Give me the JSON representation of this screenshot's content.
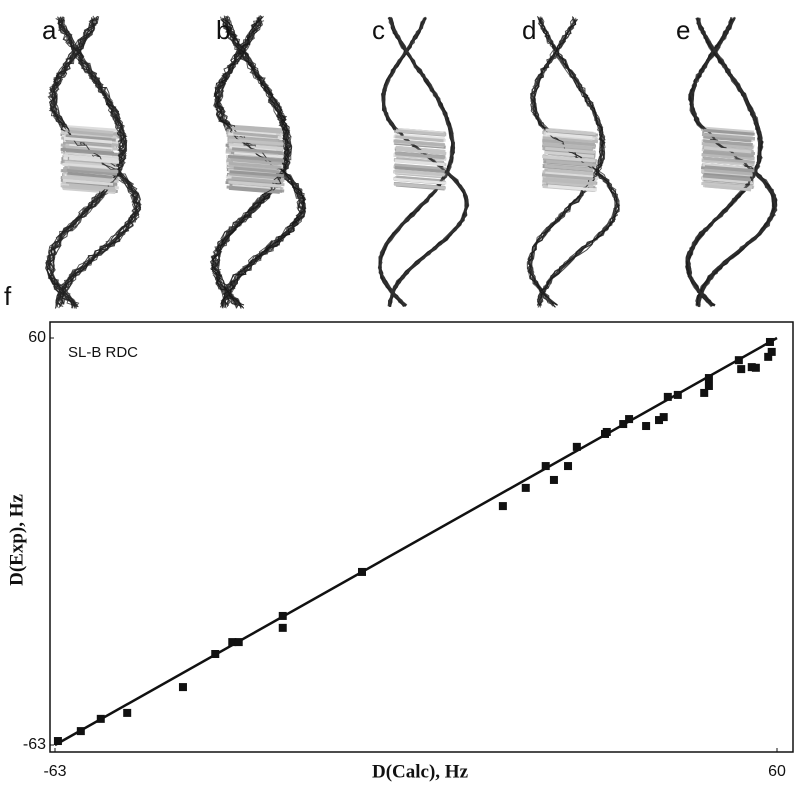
{
  "panels": {
    "labels": [
      "a",
      "b",
      "c",
      "d",
      "e"
    ],
    "plot_label": "f"
  },
  "chart_data": {
    "type": "scatter",
    "title": "SL-B RDC",
    "xlabel": "D(Calc), Hz",
    "ylabel": "D(Exp), Hz",
    "xlim": [
      -63,
      60
    ],
    "ylim": [
      -63,
      60
    ],
    "xticks": [
      -63,
      60
    ],
    "yticks": [
      -63,
      60
    ],
    "color": "#111111",
    "x": [
      -62.5,
      -58.6,
      -55.2,
      -50.7,
      -41.2,
      -35.7,
      -32.8,
      -31.7,
      -24.2,
      -24.2,
      -10.7,
      13.3,
      17.2,
      20.6,
      22.0,
      24.4,
      25.9,
      30.7,
      31.0,
      33.8,
      34.8,
      37.7,
      39.9,
      40.7,
      41.4,
      43.1,
      47.6,
      48.4,
      48.4,
      53.5,
      53.9,
      55.7,
      56.4,
      58.5,
      58.8,
      59.1
    ],
    "y": [
      -61.8,
      -58.8,
      -55.1,
      -53.3,
      -45.5,
      -35.5,
      -31.9,
      -31.9,
      -24.0,
      -27.6,
      -10.7,
      9.2,
      14.7,
      21.3,
      17.1,
      21.3,
      27.1,
      31.0,
      31.6,
      34.0,
      35.5,
      33.4,
      35.2,
      36.1,
      42.2,
      42.8,
      43.4,
      45.5,
      47.9,
      53.3,
      50.6,
      51.2,
      51.0,
      54.3,
      58.8,
      55.8
    ],
    "fit_line": {
      "x": [
        -63,
        60
      ],
      "y": [
        -63,
        60
      ]
    }
  }
}
